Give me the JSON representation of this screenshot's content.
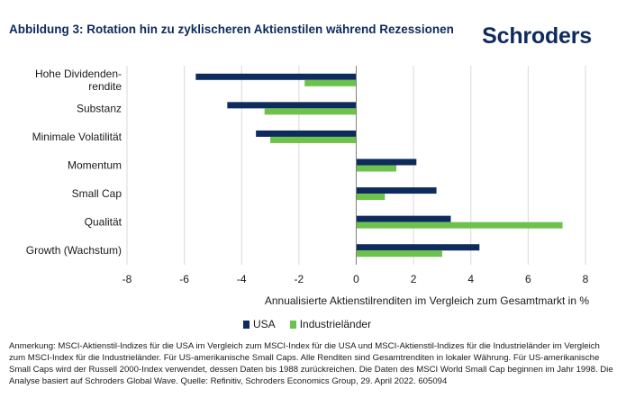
{
  "header": {
    "title": "Abbildung 3: Rotation hin zu zyklischeren Aktienstilen während Rezessionen",
    "logo": "Schroders"
  },
  "colors": {
    "usa": "#0d2b5c",
    "industrial": "#6cc24a",
    "grid": "#d9d9d9",
    "axis": "#7f7f7f"
  },
  "chart_data": {
    "type": "bar",
    "orientation": "horizontal",
    "categories": [
      [
        "Hohe Dividenden-",
        "rendite"
      ],
      [
        "Substanz"
      ],
      [
        "Minimale Volatilität"
      ],
      [
        "Momentum"
      ],
      [
        "Small Cap"
      ],
      [
        "Qualität"
      ],
      [
        "Growth (Wachstum)"
      ]
    ],
    "series": [
      {
        "name": "USA",
        "values": [
          -5.6,
          -4.5,
          -3.5,
          2.1,
          2.8,
          3.3,
          4.3
        ]
      },
      {
        "name": "Industrieländer",
        "values": [
          -1.8,
          -3.2,
          -3.0,
          1.4,
          1.0,
          7.2,
          3.0
        ]
      }
    ],
    "xlim": [
      -8,
      8
    ],
    "ticks": [
      "-8",
      "-6",
      "-4",
      "-2",
      "0",
      "2",
      "4",
      "6",
      "8"
    ],
    "tick_values": [
      -8,
      -6,
      -4,
      -2,
      0,
      2,
      4,
      6,
      8
    ],
    "xlabel": "Annualisierte Aktienstilrenditen im Vergleich zum Gesamtmarkt in %",
    "grid": "vertical",
    "legend": "bottom"
  },
  "footnote": "Anmerkung: MSCI-Aktienstil-Indizes für die USA im Vergleich zum MSCI-Index für die USA und MSCI-Aktienstil-Indizes für die Industrieländer im Vergleich zum MSCI-Index für die Industrieländer. Für US-amerikanische Small Caps. Alle Renditen sind Gesamtrenditen in lokaler Währung. Für US-amerikanische Small Caps wird der Russell 2000-Index verwendet, dessen Daten bis 1988 zurückreichen. Die Daten des MSCI World Small Cap beginnen im Jahr 1998. Die Analyse basiert auf Schroders Global Wave. Quelle: Refinitiv, Schroders Economics Group, 29. April 2022. 605094"
}
